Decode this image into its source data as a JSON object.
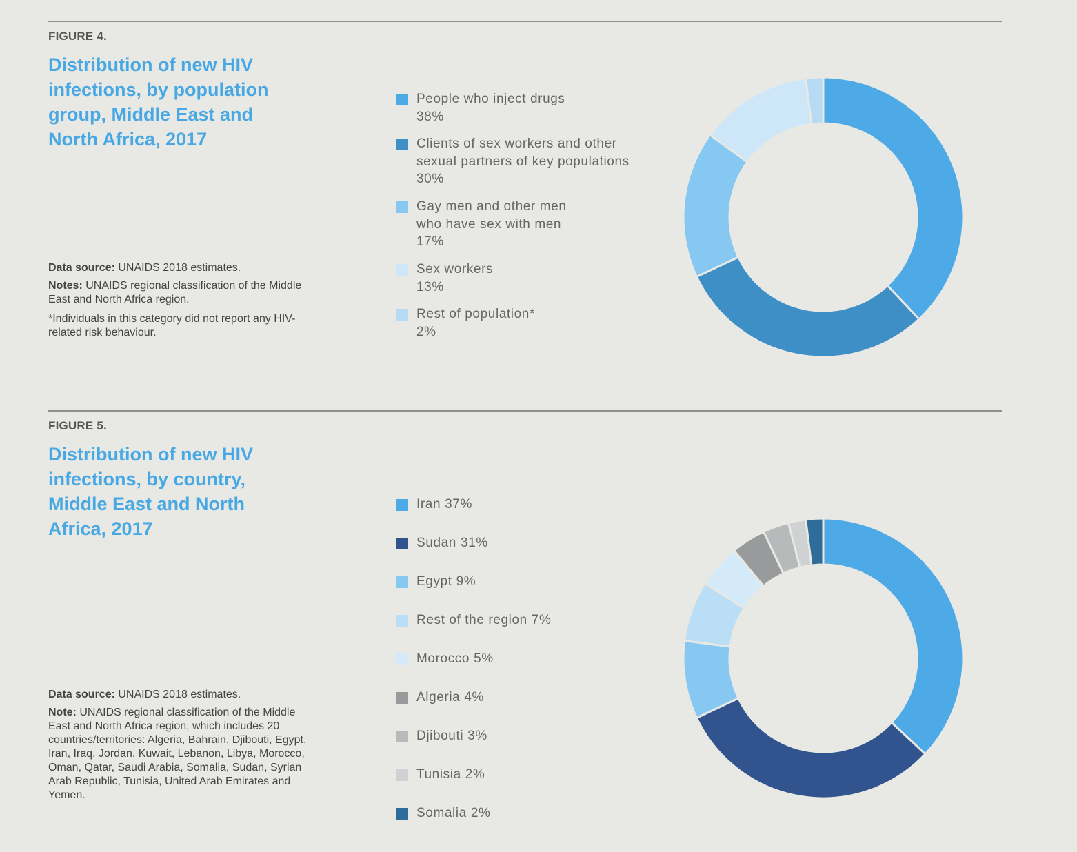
{
  "figures": [
    {
      "label": "FIGURE 4.",
      "title": "Distribution of new HIV infections, by population group, Middle East and North Africa, 2017",
      "data_source_label": "Data source:",
      "data_source": "UNAIDS 2018 estimates.",
      "notes_label": "Notes:",
      "notes": "UNAIDS regional classification of the Middle East and North Africa region.",
      "footnote": "*Individuals in this category did not report any HIV-related risk behaviour.",
      "legend": [
        {
          "label": "People who inject drugs",
          "pct": "38%"
        },
        {
          "label": "Clients of sex workers and other sexual partners of key populations",
          "pct": "30%"
        },
        {
          "label": "Gay men and other men who have sex with men",
          "pct": "17%"
        },
        {
          "label": "Sex workers",
          "pct": "13%"
        },
        {
          "label": "Rest of population*",
          "pct": "2%"
        }
      ]
    },
    {
      "label": "FIGURE 5.",
      "title": "Distribution of new HIV infections, by country, Middle East and North Africa, 2017",
      "data_source_label": "Data source:",
      "data_source": "UNAIDS 2018 estimates.",
      "notes_label": "Note:",
      "notes": "UNAIDS regional classification of the Middle East and North Africa region, which includes 20 countries/territories: Algeria, Bahrain, Djibouti, Egypt, Iran, Iraq, Jordan, Kuwait, Lebanon, Libya, Morocco, Oman, Qatar, Saudi Arabia, Somalia, Sudan, Syrian Arab Republic, Tunisia, United Arab Emirates and Yemen.",
      "legend": [
        {
          "label": "Iran",
          "pct": "37%"
        },
        {
          "label": "Sudan",
          "pct": "31%"
        },
        {
          "label": "Egypt",
          "pct": "9%"
        },
        {
          "label": "Rest of the region",
          "pct": "7%"
        },
        {
          "label": "Morocco",
          "pct": "5%"
        },
        {
          "label": "Algeria",
          "pct": "4%"
        },
        {
          "label": "Djibouti",
          "pct": "3%"
        },
        {
          "label": "Tunisia",
          "pct": "2%"
        },
        {
          "label": "Somalia",
          "pct": "2%"
        }
      ]
    }
  ],
  "chart_data": [
    {
      "type": "pie",
      "title": "Distribution of new HIV infections, by population group, Middle East and North Africa, 2017",
      "categories": [
        "People who inject drugs",
        "Clients of sex workers and other sexual partners of key populations",
        "Gay men and other men who have sex with men",
        "Sex workers",
        "Rest of population*"
      ],
      "values": [
        38,
        30,
        17,
        13,
        2
      ],
      "colors": [
        "#4eaae6",
        "#3f8fc7",
        "#86c8f2",
        "#cde6f8",
        "#b7dbf4"
      ]
    },
    {
      "type": "pie",
      "title": "Distribution of new HIV infections, by country, Middle East and North Africa, 2017",
      "categories": [
        "Iran",
        "Sudan",
        "Egypt",
        "Rest of the region",
        "Morocco",
        "Algeria",
        "Djibouti",
        "Tunisia",
        "Somalia"
      ],
      "values": [
        37,
        31,
        9,
        7,
        5,
        4,
        3,
        2,
        2
      ],
      "colors": [
        "#4eaae6",
        "#31548f",
        "#86c8f2",
        "#b9def5",
        "#d5eaf8",
        "#999a9c",
        "#b8b9bb",
        "#d0d1d3",
        "#2e6d9a"
      ]
    }
  ]
}
